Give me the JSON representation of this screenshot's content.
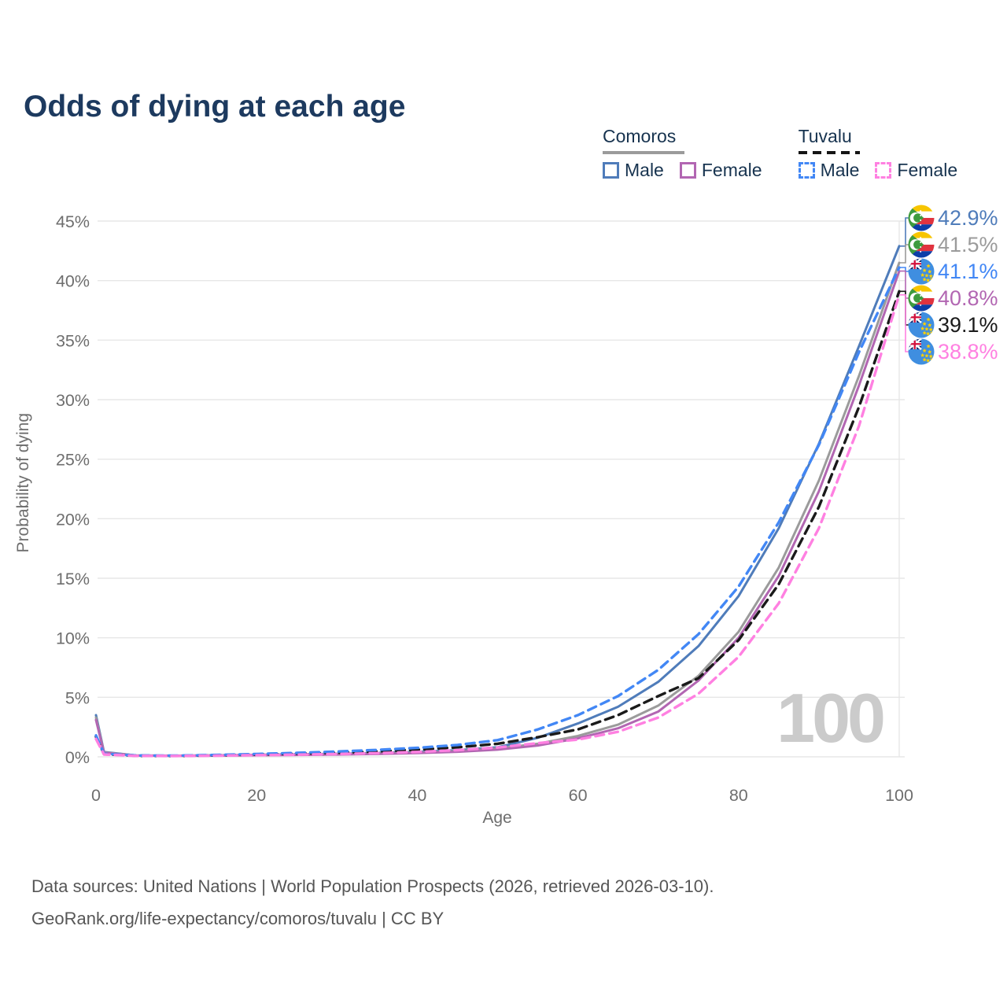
{
  "title": "Odds of dying at each age",
  "legend": {
    "groups": [
      {
        "label": "Comoros",
        "line_color": "#9b9b9b",
        "line_style": "solid",
        "items": [
          {
            "label": "Male",
            "color": "#4f7cba",
            "style": "solid"
          },
          {
            "label": "Female",
            "color": "#b266b2",
            "style": "solid"
          }
        ]
      },
      {
        "label": "Tuvalu",
        "line_color": "#151515",
        "line_style": "dashed",
        "items": [
          {
            "label": "Male",
            "color": "#4287f5",
            "style": "dashed"
          },
          {
            "label": "Female",
            "color": "#ff80e1",
            "style": "dashed"
          }
        ]
      }
    ]
  },
  "axes": {
    "x_label": "Age",
    "y_label": "Probability of dying",
    "x_ticks": [
      0,
      20,
      40,
      60,
      80,
      100
    ],
    "y_ticks": [
      0,
      5,
      10,
      15,
      20,
      25,
      30,
      35,
      40,
      45
    ]
  },
  "watermark": "100",
  "footer": {
    "line1": "Data sources: United Nations | World Population Prospects (2026, retrieved 2026-03-10).",
    "line2": "GeoRank.org/life-expectancy/comoros/tuvalu | CC BY"
  },
  "chart_data": {
    "type": "line",
    "title": "Odds of dying at each age",
    "xlabel": "Age",
    "ylabel": "Probability of dying",
    "xlim": [
      0,
      100
    ],
    "ylim": [
      0,
      45
    ],
    "grid": true,
    "legend_position": "top-right",
    "x": [
      0,
      1,
      5,
      10,
      15,
      20,
      25,
      30,
      35,
      40,
      45,
      50,
      55,
      60,
      65,
      70,
      75,
      80,
      85,
      90,
      95,
      100
    ],
    "series": [
      {
        "name": "Comoros Male",
        "country": "comoros",
        "color": "#4f7cba",
        "dash": "solid",
        "end_label": "42.9%",
        "values": [
          3.5,
          0.4,
          0.12,
          0.1,
          0.13,
          0.17,
          0.21,
          0.26,
          0.33,
          0.42,
          0.56,
          0.8,
          1.6,
          2.8,
          4.2,
          6.3,
          9.3,
          13.5,
          19.2,
          26.3,
          34.5,
          42.9
        ]
      },
      {
        "name": "Comoros",
        "country": "comoros",
        "color": "#9b9b9b",
        "dash": "solid",
        "end_label": "41.5%",
        "values": [
          3.3,
          0.37,
          0.11,
          0.09,
          0.11,
          0.15,
          0.18,
          0.22,
          0.28,
          0.36,
          0.49,
          0.7,
          1.1,
          1.75,
          2.7,
          4.3,
          6.8,
          10.5,
          15.9,
          23.2,
          32.0,
          41.5
        ]
      },
      {
        "name": "Tuvalu Male",
        "country": "tuvalu",
        "color": "#4287f5",
        "dash": "dashed",
        "end_label": "41.1%",
        "values": [
          1.8,
          0.25,
          0.11,
          0.1,
          0.16,
          0.24,
          0.33,
          0.44,
          0.58,
          0.75,
          1.0,
          1.4,
          2.3,
          3.5,
          5.1,
          7.3,
          10.3,
          14.3,
          19.7,
          26.2,
          34.0,
          41.1
        ]
      },
      {
        "name": "Comoros Female",
        "country": "comoros",
        "color": "#b266b2",
        "dash": "solid",
        "end_label": "40.8%",
        "values": [
          3.1,
          0.34,
          0.1,
          0.08,
          0.1,
          0.13,
          0.16,
          0.19,
          0.24,
          0.31,
          0.42,
          0.6,
          0.95,
          1.55,
          2.4,
          3.8,
          6.4,
          10.0,
          15.2,
          22.3,
          31.2,
          40.8
        ]
      },
      {
        "name": "Tuvalu",
        "country": "tuvalu",
        "color": "#1a1a1a",
        "dash": "dashed",
        "end_label": "39.1%",
        "values": [
          1.7,
          0.22,
          0.09,
          0.08,
          0.13,
          0.19,
          0.26,
          0.34,
          0.45,
          0.6,
          0.8,
          1.1,
          1.65,
          2.3,
          3.5,
          5.1,
          6.6,
          9.8,
          14.5,
          21.0,
          29.4,
          39.1
        ]
      },
      {
        "name": "Tuvalu Female",
        "country": "tuvalu",
        "color": "#ff80e1",
        "dash": "dashed",
        "end_label": "38.8%",
        "values": [
          1.5,
          0.2,
          0.08,
          0.07,
          0.1,
          0.14,
          0.18,
          0.24,
          0.31,
          0.41,
          0.56,
          0.78,
          1.15,
          1.45,
          2.1,
          3.3,
          5.3,
          8.4,
          12.9,
          19.2,
          27.8,
          38.8
        ]
      }
    ]
  }
}
